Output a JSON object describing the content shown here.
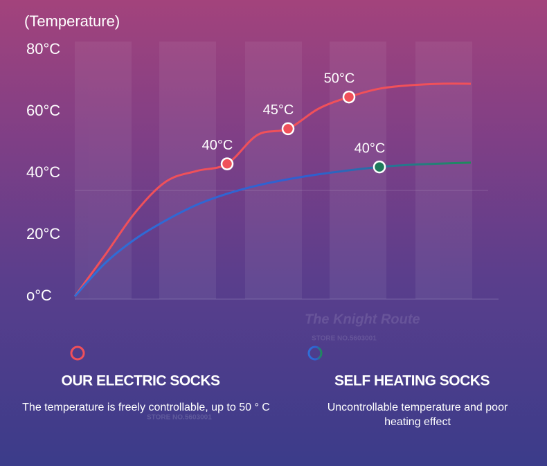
{
  "chart_data": {
    "type": "line",
    "y_label": "(Temperature)",
    "categories": [
      null,
      null,
      null,
      null,
      null,
      null,
      null,
      null,
      null,
      null,
      null,
      null,
      null,
      null
    ],
    "series": [
      {
        "name": "OUR ELECTRIC SOCKS",
        "description": "The temperature is freely controllable, up to 50 ° C",
        "color": "#f0505a",
        "values": [
          0,
          13.5,
          27.4,
          37.3,
          40.7,
          43,
          52.4,
          54.4,
          60.9,
          64.7,
          67.4,
          68.5,
          69,
          69
        ]
      },
      {
        "name": "SELF HEATING SOCKS",
        "description": "Uncontrollable temperature and poor heating effect",
        "color": "#2f6fd8",
        "marker_color": "#1f7a5a",
        "values": [
          0,
          10.8,
          18.7,
          24.7,
          29.7,
          33.3,
          36,
          38,
          39.6,
          40.9,
          42,
          42.7,
          43.1,
          43.4
        ]
      }
    ],
    "annotations": [
      {
        "text": "40°C"
      },
      {
        "text": "45°C"
      },
      {
        "text": "50°C"
      },
      {
        "text": "40°C"
      }
    ],
    "ylim": [
      0,
      80
    ],
    "yticks": [
      {
        "value": 0,
        "label": "o°C"
      },
      {
        "value": 20,
        "label": "20°C"
      },
      {
        "value": 40,
        "label": "40°C"
      },
      {
        "value": 60,
        "label": "60°C"
      },
      {
        "value": 80,
        "label": "80°C"
      }
    ],
    "watermark": [
      "The Knight Route",
      "STORE NO.5603001"
    ]
  }
}
